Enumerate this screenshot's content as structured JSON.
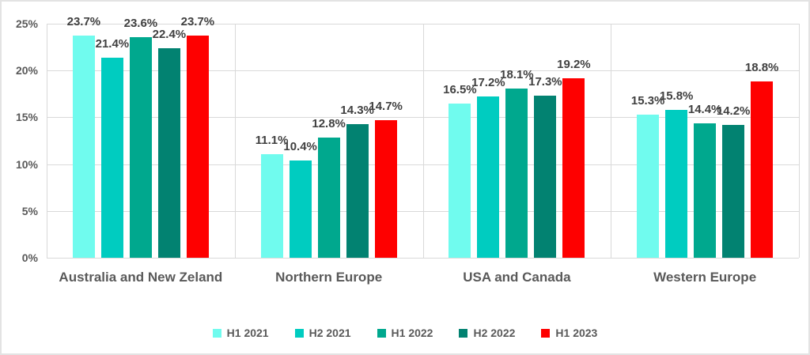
{
  "chart_data": {
    "type": "bar",
    "categories": [
      "Australia and New Zeland",
      "Northern Europe",
      "USA and Canada",
      "Western Europe"
    ],
    "series": [
      {
        "name": "H1 2021",
        "color": "#70fbee",
        "values": [
          23.7,
          11.1,
          16.5,
          15.3
        ]
      },
      {
        "name": "H2 2021",
        "color": "#00ccc0",
        "values": [
          21.4,
          10.4,
          17.2,
          15.8
        ]
      },
      {
        "name": "H1 2022",
        "color": "#00a88e",
        "values": [
          23.6,
          12.8,
          18.1,
          14.4
        ]
      },
      {
        "name": "H2 2022",
        "color": "#028271",
        "values": [
          22.4,
          14.3,
          17.3,
          14.2
        ]
      },
      {
        "name": "H1 2023",
        "color": "#fe0000",
        "values": [
          23.7,
          14.7,
          19.2,
          18.8
        ]
      }
    ],
    "value_suffix": "%",
    "value_decimals": 1,
    "y_ticks": [
      "0%",
      "5%",
      "10%",
      "15%",
      "20%",
      "25%"
    ],
    "ylim": [
      0,
      25
    ],
    "grid": true,
    "legend_position": "bottom",
    "colors": {
      "gridline": "#d9d9d9",
      "axis_text": "#595959",
      "data_label_text": "#404040",
      "background": "#ffffff"
    }
  }
}
